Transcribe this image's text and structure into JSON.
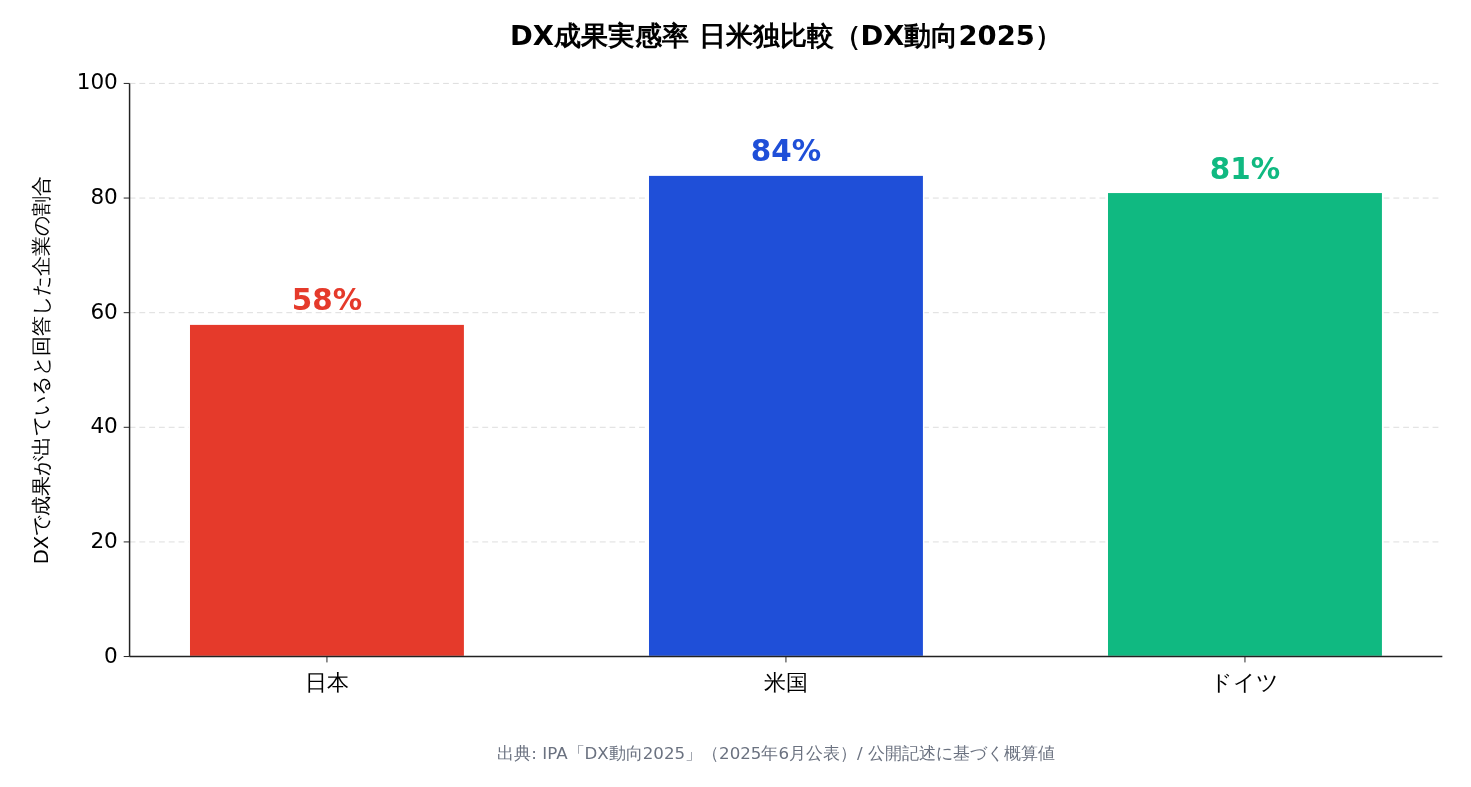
{
  "chart_data": {
    "type": "bar",
    "title": "DX成果実感率 日米独比較（DX動向2025）",
    "ylabel": "DXで成果が出ていると回答した企業の割合",
    "categories": [
      "日本",
      "米国",
      "ドイツ"
    ],
    "values": [
      58,
      84,
      81
    ],
    "colors": [
      "#e53a2b",
      "#1f4fd8",
      "#10b981"
    ],
    "value_labels": [
      "58%",
      "84%",
      "81%"
    ],
    "ylim": [
      0,
      100
    ],
    "yticks": [
      0,
      20,
      40,
      60,
      80,
      100
    ],
    "grid": "y",
    "annotations": [
      "出典: IPA「DX動向2025」（2025年6月公表）/ 公開記述に基づく概算値"
    ]
  }
}
